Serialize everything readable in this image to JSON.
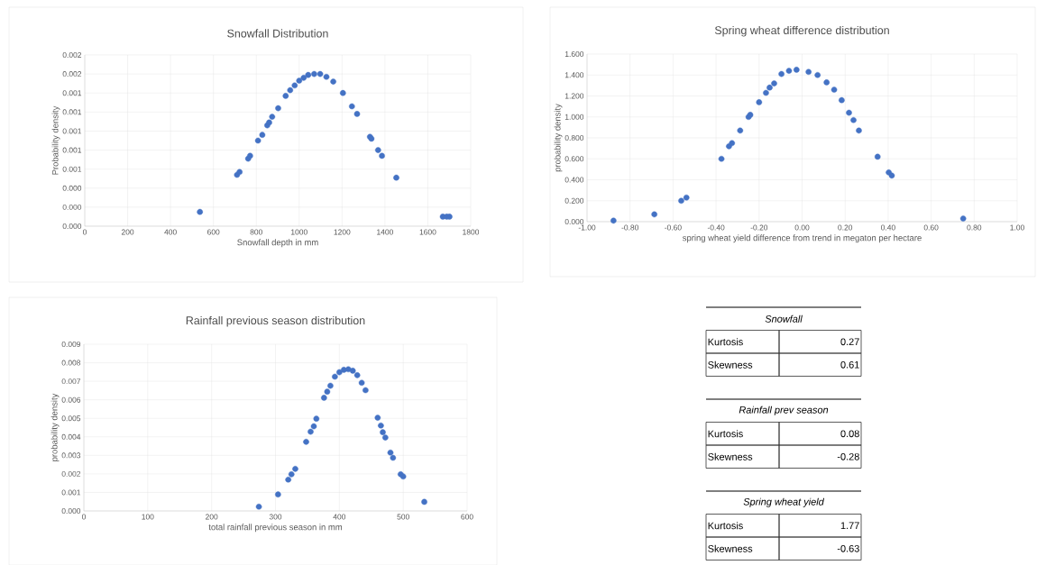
{
  "chart_data": [
    {
      "type": "scatter",
      "title": "Snowfall Distribution",
      "xlabel": "Snowfall depth in mm",
      "ylabel": "Probability density",
      "grid": true,
      "marker": "circle",
      "xlim": [
        0,
        1800
      ],
      "xticks": [
        0,
        200,
        400,
        600,
        800,
        1000,
        1200,
        1400,
        1600,
        1800
      ],
      "ylim": [
        0,
        0.0018
      ],
      "yticks": [
        {
          "value": 0,
          "label": "0.000"
        },
        {
          "value": 0.0002,
          "label": "0.000"
        },
        {
          "value": 0.0004,
          "label": "0.000"
        },
        {
          "value": 0.0006,
          "label": "0.001"
        },
        {
          "value": 0.0008,
          "label": "0.001"
        },
        {
          "value": 0.001,
          "label": "0.001"
        },
        {
          "value": 0.0012,
          "label": "0.001"
        },
        {
          "value": 0.0014,
          "label": "0.001"
        },
        {
          "value": 0.0016,
          "label": "0.002"
        },
        {
          "value": 0.0018,
          "label": "0.002"
        }
      ],
      "series": [
        {
          "color": "#4472c4",
          "x": [
            537,
            710,
            722,
            762,
            771,
            808,
            828,
            851,
            860,
            874,
            902,
            937,
            958,
            979,
            1000,
            1021,
            1042,
            1070,
            1098,
            1127,
            1159,
            1204,
            1246,
            1270,
            1330,
            1337,
            1368,
            1386,
            1453,
            1670,
            1688,
            1701
          ],
          "values": [
            0.00015,
            0.00054,
            0.00057,
            0.00071,
            0.00074,
            0.0009,
            0.00096,
            0.00106,
            0.00109,
            0.00115,
            0.00124,
            0.00137,
            0.00143,
            0.00148,
            0.00153,
            0.00156,
            0.00159,
            0.0016,
            0.0016,
            0.00157,
            0.00152,
            0.0014,
            0.00126,
            0.00118,
            0.00094,
            0.00092,
            0.0008,
            0.00074,
            0.00051,
            0.0001,
            0.0001,
            0.0001
          ]
        }
      ]
    },
    {
      "type": "scatter",
      "title": "Spring wheat difference distribution",
      "xlabel": "spring wheat yield difference  from trend in megaton per hectare",
      "ylabel": "probability density",
      "grid": true,
      "marker": "circle",
      "xlim": [
        -1,
        1
      ],
      "xticks": [
        {
          "value": -1,
          "label": "-1.00"
        },
        {
          "value": -0.8,
          "label": "-0.80"
        },
        {
          "value": -0.6,
          "label": "-0.60"
        },
        {
          "value": -0.4,
          "label": "-0.40"
        },
        {
          "value": -0.2,
          "label": "-0.20"
        },
        {
          "value": 0,
          "label": "0.00"
        },
        {
          "value": 0.2,
          "label": "0.20"
        },
        {
          "value": 0.4,
          "label": "0.40"
        },
        {
          "value": 0.6,
          "label": "0.60"
        },
        {
          "value": 0.8,
          "label": "0.80"
        },
        {
          "value": 1,
          "label": "1.00"
        }
      ],
      "ylim": [
        0,
        1.6
      ],
      "yticks": [
        {
          "value": 0,
          "label": "0.000"
        },
        {
          "value": 0.2,
          "label": "0.200"
        },
        {
          "value": 0.4,
          "label": "0.400"
        },
        {
          "value": 0.6,
          "label": "0.600"
        },
        {
          "value": 0.8,
          "label": "0.800"
        },
        {
          "value": 1,
          "label": "1.000"
        },
        {
          "value": 1.2,
          "label": "1.200"
        },
        {
          "value": 1.4,
          "label": "1.400"
        },
        {
          "value": 1.6,
          "label": "1.600"
        }
      ],
      "series": [
        {
          "color": "#4472c4",
          "x": [
            -0.877,
            -0.687,
            -0.562,
            -0.538,
            -0.375,
            -0.34,
            -0.326,
            -0.288,
            -0.249,
            -0.241,
            -0.2,
            -0.168,
            -0.151,
            -0.13,
            -0.096,
            -0.061,
            -0.026,
            0.03,
            0.072,
            0.114,
            0.149,
            0.184,
            0.218,
            0.239,
            0.264,
            0.351,
            0.403,
            0.417,
            0.749
          ],
          "values": [
            0.01,
            0.07,
            0.2,
            0.23,
            0.6,
            0.72,
            0.75,
            0.87,
            1.0,
            1.02,
            1.14,
            1.23,
            1.28,
            1.32,
            1.41,
            1.44,
            1.45,
            1.43,
            1.4,
            1.33,
            1.26,
            1.16,
            1.04,
            0.97,
            0.87,
            0.62,
            0.47,
            0.44,
            0.03
          ]
        }
      ]
    },
    {
      "type": "scatter",
      "title": "Rainfall previous season distribution",
      "xlabel": "total rainfall previous season in mm",
      "ylabel": "probability density",
      "grid": true,
      "marker": "circle",
      "xlim": [
        0,
        600
      ],
      "xticks": [
        0,
        100,
        200,
        300,
        400,
        500,
        600
      ],
      "ylim": [
        0,
        0.009
      ],
      "yticks": [
        {
          "value": 0,
          "label": "0.000"
        },
        0.001,
        0.002,
        0.003,
        0.004,
        0.005,
        0.006,
        0.007,
        0.008,
        0.009
      ],
      "series": [
        {
          "color": "#4472c4",
          "x": [
            274,
            304,
            320,
            325,
            331,
            348,
            355,
            360,
            364,
            376,
            381,
            386,
            393,
            400,
            407,
            414,
            421,
            428,
            435,
            441,
            460,
            465,
            468,
            472,
            480,
            484,
            496,
            500,
            533
          ],
          "values": [
            0.00023,
            0.00089,
            0.00169,
            0.00198,
            0.00227,
            0.00373,
            0.00428,
            0.00457,
            0.00498,
            0.00611,
            0.00644,
            0.00676,
            0.00725,
            0.00749,
            0.00762,
            0.00765,
            0.00757,
            0.00733,
            0.00692,
            0.00652,
            0.00503,
            0.00461,
            0.00425,
            0.00396,
            0.00315,
            0.00287,
            0.00198,
            0.00186,
            0.00049
          ]
        }
      ]
    },
    {
      "type": "other",
      "annotations": [
        "Snowfall",
        "Kurtosis",
        "0.27",
        "Skewness",
        "0.61",
        "Rainfall prev season",
        "Kurtosis",
        "0.08",
        "Skewness",
        "-0.28",
        "Spring wheat yield",
        "Kurtosis",
        "1.77",
        "Skewness",
        "-0.63"
      ]
    }
  ]
}
